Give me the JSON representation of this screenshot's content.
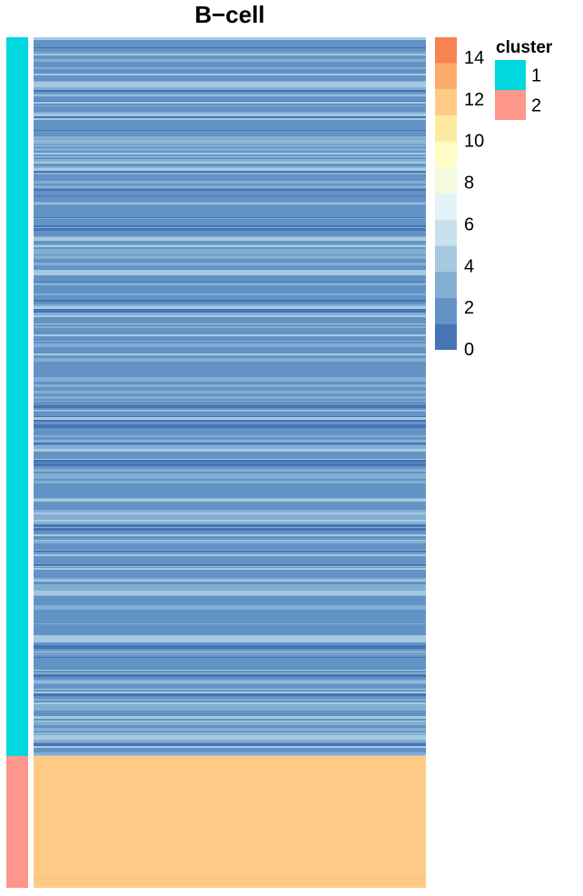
{
  "chart_data": {
    "type": "heatmap",
    "title": "B−cell",
    "colorbar": {
      "breaks": [
        0,
        1.25,
        2.5,
        3.75,
        5,
        6.25,
        7.5,
        8.75,
        10,
        11.25,
        12.5,
        13.75,
        15
      ],
      "colors": [
        "#4575b4",
        "#6393c5",
        "#82aed3",
        "#a6c9e0",
        "#c8e1ec",
        "#e4f3f7",
        "#f4fadd",
        "#fffcc4",
        "#fee9a0",
        "#fecb87",
        "#fdab6c",
        "#f78252",
        "#ea5e41"
      ],
      "tick_labels": [
        "0",
        "2",
        "4",
        "6",
        "8",
        "10",
        "12",
        "14"
      ],
      "tick_values": [
        0,
        2,
        4,
        6,
        8,
        10,
        12,
        14
      ],
      "range": [
        0,
        15
      ]
    },
    "row_annotation": {
      "title": "cluster",
      "clusters": [
        {
          "label": "1",
          "color": "#00d7de",
          "row_fraction": 0.845
        },
        {
          "label": "2",
          "color": "#fe968c",
          "row_fraction": 0.155
        }
      ]
    },
    "cluster_value_ranges": {
      "1": {
        "typical": 1.5,
        "min": 0.3,
        "max": 4.5
      },
      "2": {
        "typical": 12.2,
        "min": 12.0,
        "max": 12.5
      }
    },
    "legend_position": "right"
  }
}
